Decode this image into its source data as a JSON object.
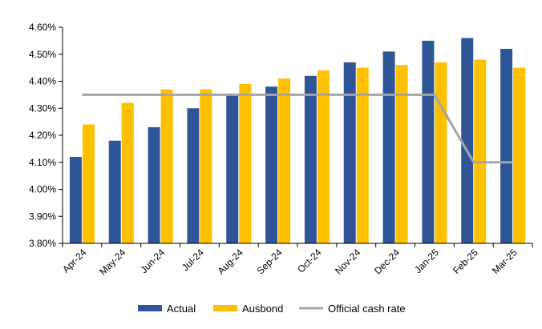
{
  "chart_data": {
    "type": "bar",
    "title": "",
    "xlabel": "",
    "ylabel": "",
    "categories": [
      "Apr-24",
      "May-24",
      "Jun-24",
      "Jul-24",
      "Aug-24",
      "Sep-24",
      "Oct-24",
      "Nov-24",
      "Dec-24",
      "Jan-25",
      "Feb-25",
      "Mar-25"
    ],
    "series": [
      {
        "name": "Actual",
        "kind": "bar",
        "color": "#2F5597",
        "values": [
          4.12,
          4.18,
          4.23,
          4.3,
          4.35,
          4.38,
          4.42,
          4.47,
          4.51,
          4.55,
          4.56,
          4.52
        ]
      },
      {
        "name": "Ausbond",
        "kind": "bar",
        "color": "#FFC000",
        "values": [
          4.24,
          4.32,
          4.37,
          4.37,
          4.39,
          4.41,
          4.44,
          4.45,
          4.46,
          4.47,
          4.48,
          4.45
        ]
      },
      {
        "name": "Official cash rate",
        "kind": "line",
        "color": "#A5A5A5",
        "values": [
          4.35,
          4.35,
          4.35,
          4.35,
          4.35,
          4.35,
          4.35,
          4.35,
          4.35,
          4.35,
          4.1,
          4.1
        ]
      }
    ],
    "ylim": [
      3.8,
      4.6
    ],
    "yticks": [
      "4.60%",
      "4.50%",
      "4.40%",
      "4.30%",
      "4.20%",
      "4.10%",
      "4.00%",
      "3.90%",
      "3.80%"
    ],
    "ytick_values": [
      4.6,
      4.5,
      4.4,
      4.3,
      4.2,
      4.1,
      4.0,
      3.9,
      3.8
    ],
    "grid": false,
    "legend": "bottom"
  }
}
